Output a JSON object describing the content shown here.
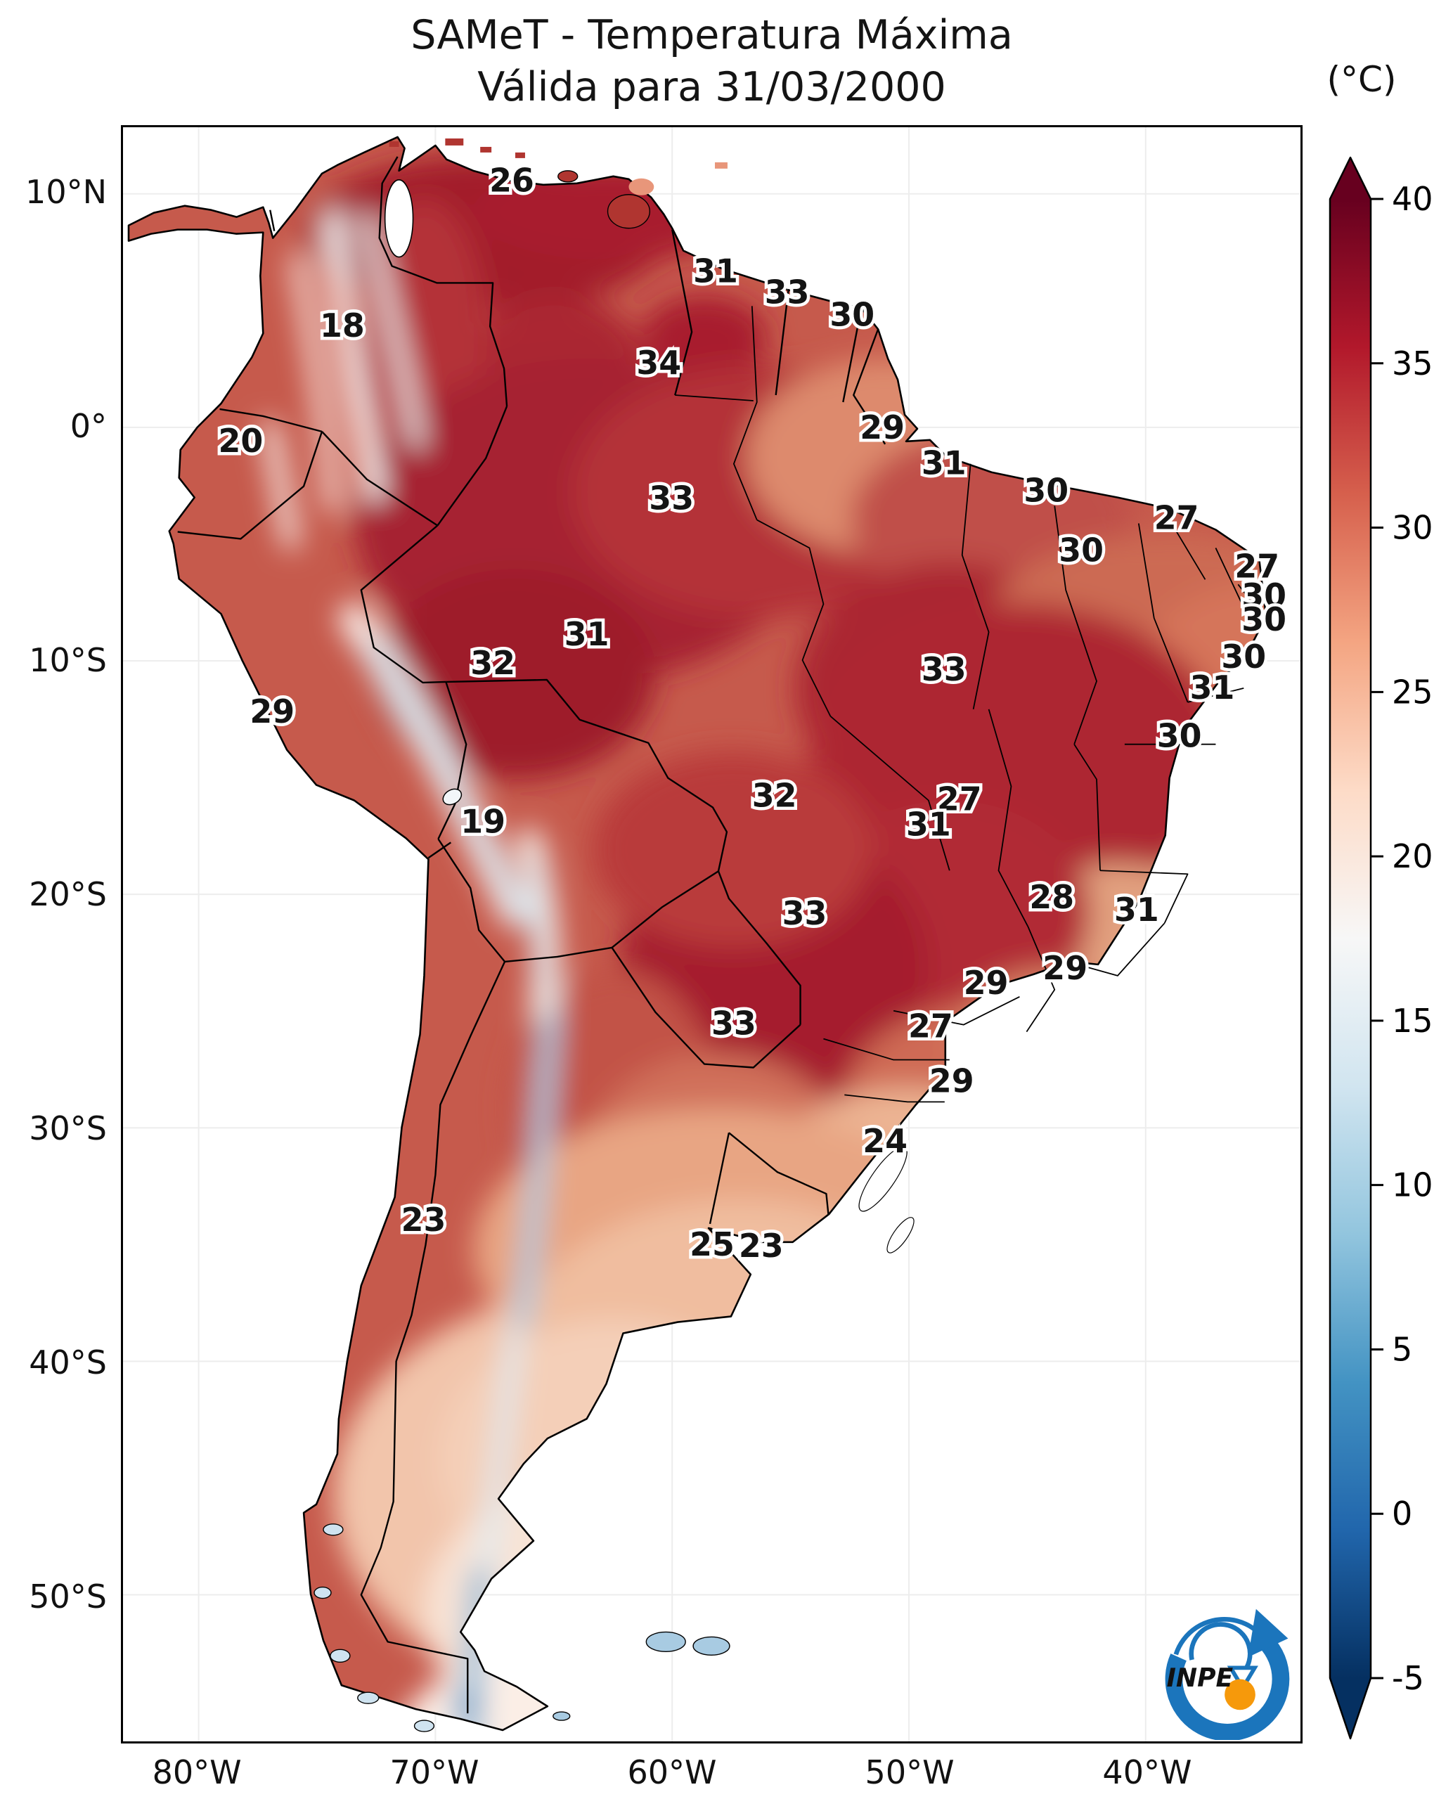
{
  "title": {
    "line1": "SAMeT - Temperatura Máxima",
    "line2": "Válida para 31/03/2000"
  },
  "colorbar": {
    "unit": "(°C)",
    "vmax": 40,
    "vmin": -5,
    "ticks": [
      40,
      35,
      30,
      25,
      20,
      15,
      10,
      5,
      0,
      -5
    ],
    "gradient": [
      "#67001f",
      "#b2182b",
      "#d6604d",
      "#f4a582",
      "#fddbc7",
      "#f7f7f7",
      "#d1e5f0",
      "#92c5de",
      "#4393c3",
      "#2166ac",
      "#053061"
    ]
  },
  "axes": {
    "lat_ticks": [
      {
        "label": "10°N",
        "f": 0.0413
      },
      {
        "label": "0°",
        "f": 0.1859
      },
      {
        "label": "10°S",
        "f": 0.3306
      },
      {
        "label": "20°S",
        "f": 0.4752
      },
      {
        "label": "30°S",
        "f": 0.6199
      },
      {
        "label": "40°S",
        "f": 0.7645
      },
      {
        "label": "50°S",
        "f": 0.9092
      }
    ],
    "lon_ticks": [
      {
        "label": "80°W",
        "f": 0.0643
      },
      {
        "label": "70°W",
        "f": 0.2653
      },
      {
        "label": "60°W",
        "f": 0.4664
      },
      {
        "label": "50°W",
        "f": 0.6675
      },
      {
        "label": "40°W",
        "f": 0.8685
      }
    ]
  },
  "map_data": {
    "type": "raster-temperature-map",
    "region": "South America",
    "unit": "°C",
    "temperature_labels": [
      {
        "v": 26,
        "x": 0.33,
        "y": 0.033
      },
      {
        "v": 18,
        "x": 0.186,
        "y": 0.123
      },
      {
        "v": 31,
        "x": 0.503,
        "y": 0.089
      },
      {
        "v": 33,
        "x": 0.564,
        "y": 0.102
      },
      {
        "v": 30,
        "x": 0.619,
        "y": 0.116
      },
      {
        "v": 34,
        "x": 0.455,
        "y": 0.146
      },
      {
        "v": 20,
        "x": 0.1,
        "y": 0.194
      },
      {
        "v": 29,
        "x": 0.645,
        "y": 0.186
      },
      {
        "v": 31,
        "x": 0.697,
        "y": 0.208
      },
      {
        "v": 33,
        "x": 0.466,
        "y": 0.23
      },
      {
        "v": 30,
        "x": 0.784,
        "y": 0.225
      },
      {
        "v": 27,
        "x": 0.895,
        "y": 0.242
      },
      {
        "v": 30,
        "x": 0.814,
        "y": 0.262
      },
      {
        "v": 27,
        "x": 0.963,
        "y": 0.272
      },
      {
        "v": 30,
        "x": 0.969,
        "y": 0.29
      },
      {
        "v": 30,
        "x": 0.969,
        "y": 0.305
      },
      {
        "v": 31,
        "x": 0.394,
        "y": 0.314
      },
      {
        "v": 30,
        "x": 0.952,
        "y": 0.328
      },
      {
        "v": 32,
        "x": 0.314,
        "y": 0.332
      },
      {
        "v": 33,
        "x": 0.697,
        "y": 0.336
      },
      {
        "v": 31,
        "x": 0.925,
        "y": 0.347
      },
      {
        "v": 29,
        "x": 0.127,
        "y": 0.362
      },
      {
        "v": 30,
        "x": 0.897,
        "y": 0.377
      },
      {
        "v": 32,
        "x": 0.553,
        "y": 0.414
      },
      {
        "v": 27,
        "x": 0.71,
        "y": 0.416
      },
      {
        "v": 31,
        "x": 0.684,
        "y": 0.432
      },
      {
        "v": 19,
        "x": 0.306,
        "y": 0.43
      },
      {
        "v": 28,
        "x": 0.789,
        "y": 0.477
      },
      {
        "v": 31,
        "x": 0.861,
        "y": 0.485
      },
      {
        "v": 33,
        "x": 0.579,
        "y": 0.487
      },
      {
        "v": 29,
        "x": 0.8,
        "y": 0.521
      },
      {
        "v": 29,
        "x": 0.733,
        "y": 0.53
      },
      {
        "v": 33,
        "x": 0.519,
        "y": 0.555
      },
      {
        "v": 27,
        "x": 0.686,
        "y": 0.557
      },
      {
        "v": 29,
        "x": 0.704,
        "y": 0.591
      },
      {
        "v": 24,
        "x": 0.647,
        "y": 0.628
      },
      {
        "v": 23,
        "x": 0.255,
        "y": 0.677
      },
      {
        "v": 25,
        "x": 0.5,
        "y": 0.692
      },
      {
        "v": 23,
        "x": 0.542,
        "y": 0.693
      }
    ]
  },
  "logo": {
    "text": "INPE"
  }
}
